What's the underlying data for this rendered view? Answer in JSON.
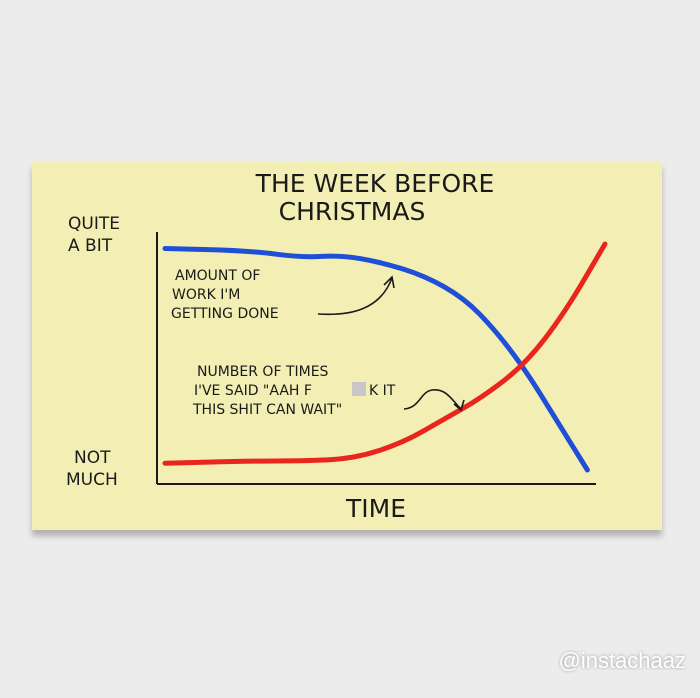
{
  "chart_data": {
    "type": "line",
    "title": "THE WEEK BEFORE CHRISTMAS",
    "xlabel": "TIME",
    "ylabel_top": "QUITE A BIT",
    "ylabel_bottom": "NOT MUCH",
    "xlim": [
      0,
      10
    ],
    "ylim": [
      0,
      10
    ],
    "grid": false,
    "series": [
      {
        "name": "AMOUNT OF WORK I'M GETTING DONE",
        "color": "#1f4fd6",
        "x": [
          0,
          1.95,
          3.1,
          4.0,
          4.9,
          5.9,
          6.8,
          7.5,
          8.2,
          8.9,
          9.6
        ],
        "y": [
          9.8,
          9.7,
          9.4,
          9.5,
          9.2,
          8.6,
          7.6,
          6.2,
          4.4,
          2.2,
          0
        ]
      },
      {
        "name": "NUMBER OF TIMES I'VE SAID \"AAH F**K IT THIS SHIT CAN WAIT\"",
        "color": "#e8261d",
        "x": [
          0,
          1.95,
          3.1,
          4.3,
          5.4,
          6.3,
          7.2,
          8.2,
          9.1,
          10
        ],
        "y": [
          0.3,
          0.4,
          0.4,
          0.5,
          1.2,
          2.2,
          3.2,
          4.7,
          7.0,
          10
        ]
      }
    ],
    "annotations": {
      "blue": [
        "AMOUNT OF",
        "WORK I'M",
        "GETTING DONE"
      ],
      "red": [
        "NUMBER OF TIMES",
        "I'VE SAID \"AAH F",
        "K IT",
        "THIS SHIT CAN WAIT\""
      ]
    }
  },
  "watermark": "@instachaaz"
}
